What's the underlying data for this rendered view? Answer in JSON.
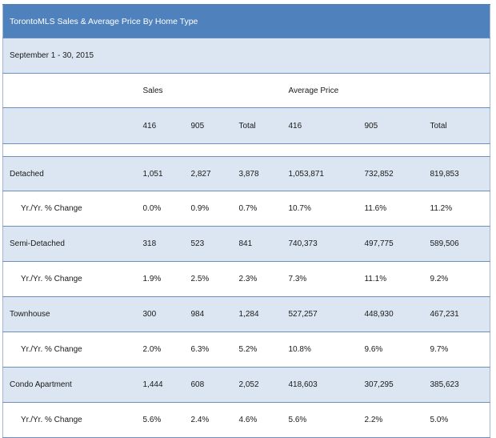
{
  "title": "TorontoMLS Sales & Average Price  By Home Type",
  "period": "September 1 - 30, 2015",
  "group_headers": {
    "sales": "Sales",
    "average_price": "Average Price"
  },
  "columns": [
    "416",
    "905",
    "Total",
    "416",
    "905",
    "Total"
  ],
  "rows": [
    {
      "label": "Detached",
      "values": [
        "1,051",
        "2,827",
        "3,878",
        "1,053,871",
        "732,852",
        "819,853"
      ]
    },
    {
      "label": "Yr./Yr. % Change",
      "values": [
        "0.0%",
        "0.9%",
        "0.7%",
        "10.7%",
        "11.6%",
        "11.2%"
      ]
    },
    {
      "label": "Semi-Detached",
      "values": [
        "318",
        "523",
        "841",
        "740,373",
        "497,775",
        "589,506"
      ]
    },
    {
      "label": "Yr./Yr. % Change",
      "values": [
        "1.9%",
        "2.5%",
        "2.3%",
        "7.3%",
        "11.1%",
        "9.2%"
      ]
    },
    {
      "label": "Townhouse",
      "values": [
        "300",
        "984",
        "1,284",
        "527,257",
        "448,930",
        "467,231"
      ]
    },
    {
      "label": "Yr./Yr. % Change",
      "values": [
        "2.0%",
        "6.3%",
        "5.2%",
        "10.8%",
        "9.6%",
        "9.7%"
      ]
    },
    {
      "label": "Condo Apartment",
      "values": [
        "1,444",
        "608",
        "2,052",
        "418,603",
        "307,295",
        "385,623"
      ]
    },
    {
      "label": "Yr./Yr. % Change",
      "values": [
        "5.6%",
        "2.4%",
        "4.6%",
        "5.6%",
        "2.2%",
        "5.0%"
      ]
    }
  ]
}
